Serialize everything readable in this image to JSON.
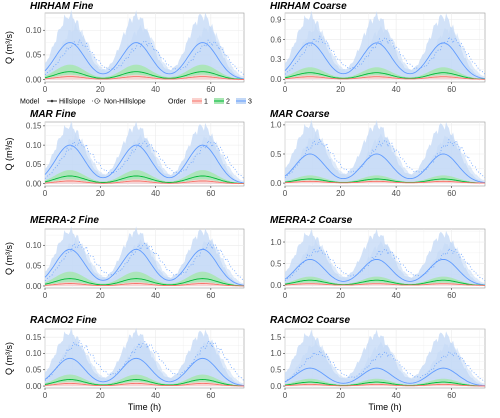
{
  "legend": {
    "model_title": "Model",
    "model_items": [
      "Hillslope",
      "Non-Hillslope"
    ],
    "order_title": "Order",
    "order_items": [
      "1",
      "2",
      "3"
    ]
  },
  "colors": {
    "order1": "#f8766d",
    "order2": "#00ba38",
    "order3": "#619cff",
    "order1_band": "#fbd3cf",
    "order2_band": "#a9e6b3",
    "order3_band": "#c3d8f6"
  },
  "chart_data": [
    {
      "type": "line",
      "title": "HIRHAM Fine",
      "xlabel": "",
      "ylabel": "Q (m³/s)",
      "xlim": [
        0,
        72
      ],
      "ylim": [
        -0.005,
        0.135
      ],
      "y_ticks": [
        "0.00",
        "0.05",
        "0.10"
      ],
      "x_ticks": [
        "0",
        "20",
        "40",
        "60"
      ],
      "grid": true,
      "peaks": {
        "hill_o1": 0.006,
        "hill_o2": 0.016,
        "hill_o3": 0.075,
        "band_o3": 0.13,
        "band_o2": 0.03,
        "non_o3": 0.075
      },
      "series": [
        {
          "name": "1"
        },
        {
          "name": "2"
        },
        {
          "name": "3"
        }
      ]
    },
    {
      "type": "line",
      "title": "HIRHAM Coarse",
      "xlabel": "",
      "ylabel": "",
      "xlim": [
        0,
        72
      ],
      "ylim": [
        -0.04,
        1.0
      ],
      "y_ticks": [
        "0.0",
        "0.3",
        "0.6",
        "0.9"
      ],
      "x_ticks": [
        "0",
        "20",
        "40",
        "60"
      ],
      "grid": true,
      "peaks": {
        "hill_o1": 0.04,
        "hill_o2": 0.1,
        "hill_o3": 0.55,
        "band_o3": 0.95,
        "band_o2": 0.18,
        "non_o3": 0.6
      },
      "series": [
        {
          "name": "1"
        },
        {
          "name": "2"
        },
        {
          "name": "3"
        }
      ]
    },
    {
      "type": "line",
      "title": "MAR Fine",
      "xlabel": "",
      "ylabel": "Q (m³/s)",
      "xlim": [
        0,
        72
      ],
      "ylim": [
        -0.006,
        0.16
      ],
      "y_ticks": [
        "0.00",
        "0.05",
        "0.10",
        "0.15"
      ],
      "x_ticks": [
        "0",
        "20",
        "40",
        "60"
      ],
      "grid": true,
      "peaks": {
        "hill_o1": 0.007,
        "hill_o2": 0.02,
        "hill_o3": 0.1,
        "band_o3": 0.15,
        "band_o2": 0.035,
        "non_o3": 0.105
      },
      "series": [
        {
          "name": "1"
        },
        {
          "name": "2"
        },
        {
          "name": "3"
        }
      ]
    },
    {
      "type": "line",
      "title": "MAR Coarse",
      "xlabel": "",
      "ylabel": "",
      "xlim": [
        0,
        72
      ],
      "ylim": [
        -0.05,
        1.05
      ],
      "y_ticks": [
        "0.0",
        "0.5",
        "1.0"
      ],
      "x_ticks": [
        "0",
        "20",
        "40",
        "60"
      ],
      "grid": true,
      "peaks": {
        "hill_o1": 0.03,
        "hill_o2": 0.07,
        "hill_o3": 0.5,
        "band_o3": 1.0,
        "band_o2": 0.13,
        "non_o3": 0.7
      },
      "series": [
        {
          "name": "1"
        },
        {
          "name": "2"
        },
        {
          "name": "3"
        }
      ]
    },
    {
      "type": "line",
      "title": "MERRA-2  Fine",
      "xlabel": "",
      "ylabel": "Q (m³/s)",
      "xlim": [
        0,
        72
      ],
      "ylim": [
        -0.005,
        0.14
      ],
      "y_ticks": [
        "0.00",
        "0.05",
        "0.10"
      ],
      "x_ticks": [
        "0",
        "20",
        "40",
        "60"
      ],
      "grid": true,
      "peaks": {
        "hill_o1": 0.006,
        "hill_o2": 0.018,
        "hill_o3": 0.09,
        "band_o3": 0.135,
        "band_o2": 0.035,
        "non_o3": 0.1
      },
      "series": [
        {
          "name": "1"
        },
        {
          "name": "2"
        },
        {
          "name": "3"
        }
      ]
    },
    {
      "type": "line",
      "title": "MERRA-2 Coarse",
      "xlabel": "",
      "ylabel": "",
      "xlim": [
        0,
        72
      ],
      "ylim": [
        -0.06,
        1.3
      ],
      "y_ticks": [
        "0.0",
        "0.5",
        "1.0"
      ],
      "x_ticks": [
        "0",
        "20",
        "40",
        "60"
      ],
      "grid": true,
      "peaks": {
        "hill_o1": 0.04,
        "hill_o2": 0.12,
        "hill_o3": 0.6,
        "band_o3": 1.2,
        "band_o2": 0.2,
        "non_o3": 0.8
      },
      "series": [
        {
          "name": "1"
        },
        {
          "name": "2"
        },
        {
          "name": "3"
        }
      ]
    },
    {
      "type": "line",
      "title": "RACMO2 Fine",
      "xlabel": "Time (h)",
      "ylabel": "Q (m³/s)",
      "xlim": [
        0,
        72
      ],
      "ylim": [
        -0.006,
        0.175
      ],
      "y_ticks": [
        "0.00",
        "0.05",
        "0.10",
        "0.15"
      ],
      "x_ticks": [
        "0",
        "20",
        "40",
        "60"
      ],
      "grid": true,
      "peaks": {
        "hill_o1": 0.008,
        "hill_o2": 0.02,
        "hill_o3": 0.085,
        "band_o3": 0.165,
        "band_o2": 0.035,
        "non_o3": 0.13
      },
      "series": [
        {
          "name": "1"
        },
        {
          "name": "2"
        },
        {
          "name": "3"
        }
      ]
    },
    {
      "type": "line",
      "title": "RACMO2 Coarse",
      "xlabel": "Time (h)",
      "ylabel": "",
      "xlim": [
        0,
        72
      ],
      "ylim": [
        -0.06,
        1.75
      ],
      "y_ticks": [
        "0.0",
        "0.5",
        "1.0",
        "1.5"
      ],
      "x_ticks": [
        "0",
        "20",
        "40",
        "60"
      ],
      "grid": true,
      "peaks": {
        "hill_o1": 0.05,
        "hill_o2": 0.12,
        "hill_o3": 0.55,
        "band_o3": 1.6,
        "band_o2": 0.22,
        "non_o3": 1.0
      },
      "series": [
        {
          "name": "1"
        },
        {
          "name": "2"
        },
        {
          "name": "3"
        }
      ]
    }
  ]
}
